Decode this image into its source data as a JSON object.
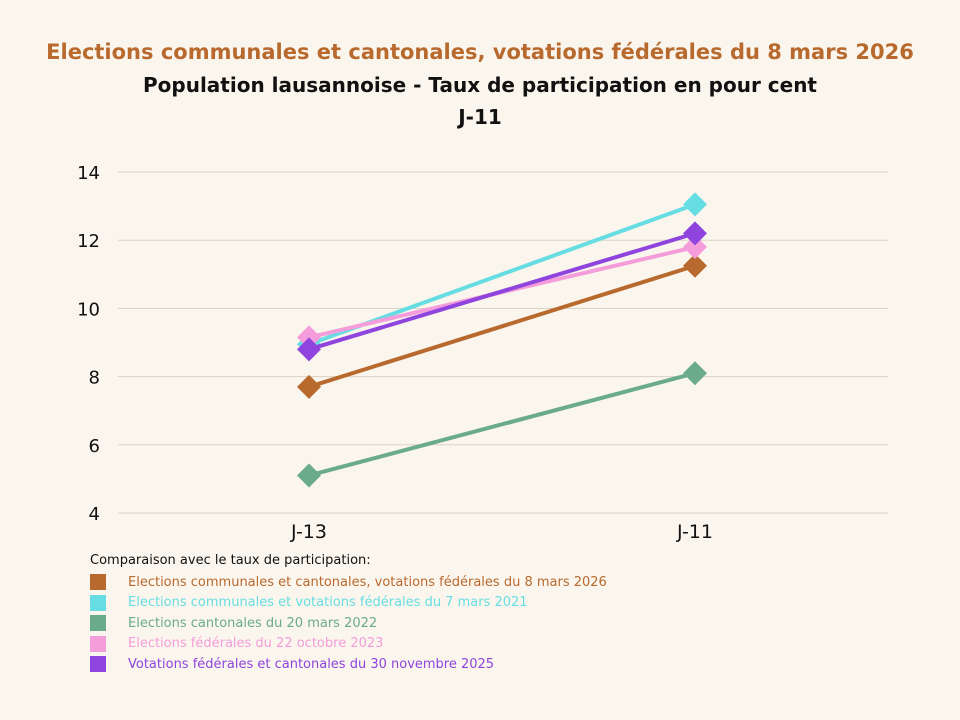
{
  "titles": {
    "line1": "Elections communales et cantonales, votations fédérales du 8 mars 2026",
    "line2": "Population lausannoise - Taux de participation en pour cent",
    "line3": "J-11"
  },
  "legend_title": "Comparaison avec le taux de participation:",
  "colors": {
    "background": "#fbf6ed",
    "grid": "#d9d2c3",
    "axis_text": "#111111",
    "title_accent": "#b8692e"
  },
  "chart_data": {
    "type": "line",
    "categories": [
      "J-13",
      "J-11"
    ],
    "ylim": [
      4,
      14
    ],
    "yticks": [
      4,
      6,
      8,
      10,
      12,
      14
    ],
    "grid": true,
    "marker": "diamond",
    "legend_position": "bottom-left",
    "series": [
      {
        "name": "Elections communales et cantonales, votations fédérales du 8 mars 2026",
        "color": "#b8692e",
        "values": [
          7.7,
          11.25
        ]
      },
      {
        "name": "Elections communales et votations fédérales du 7 mars 2021",
        "color": "#66dde2",
        "values": [
          8.95,
          13.05
        ]
      },
      {
        "name": "Elections cantonales du 20 mars 2022",
        "color": "#6aab8b",
        "values": [
          5.1,
          8.1
        ]
      },
      {
        "name": "Elections fédérales du 22 octobre 2023",
        "color": "#f59cdb",
        "values": [
          9.15,
          11.8
        ]
      },
      {
        "name": "Votations fédérales et cantonales du 30 novembre 2025",
        "color": "#8e44dd",
        "values": [
          8.8,
          12.2
        ]
      }
    ]
  }
}
